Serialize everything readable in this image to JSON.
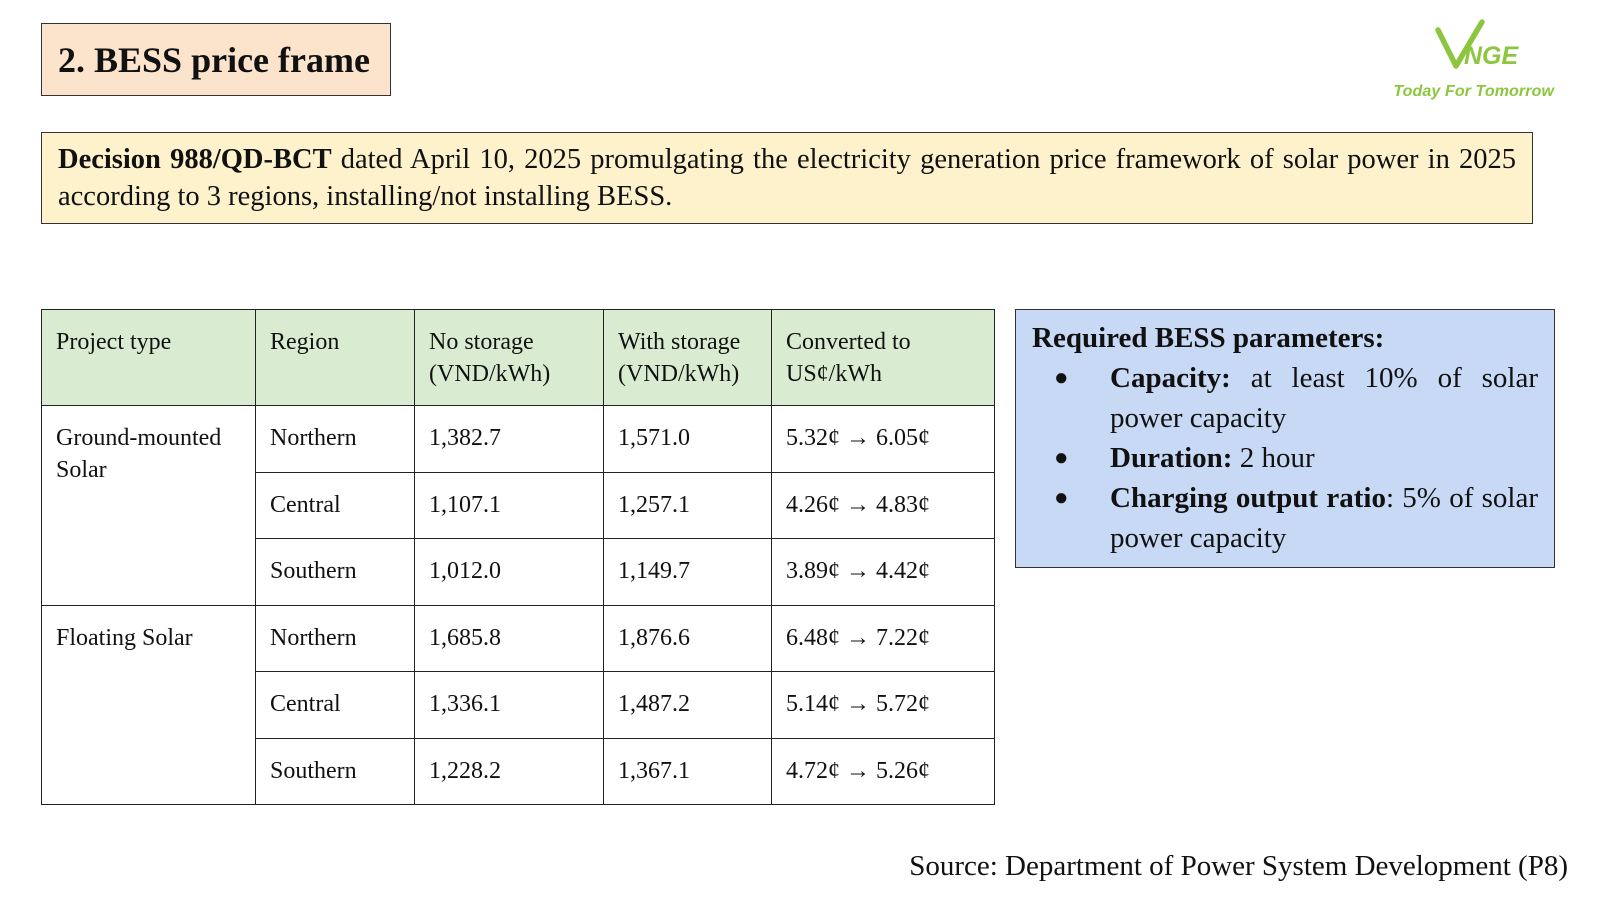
{
  "title": "2. BESS price frame",
  "logo": {
    "brand": "VNGE",
    "tagline": "Today For Tomorrow",
    "color": "#8cc63f"
  },
  "decision": {
    "bold_lead": "Decision  988/QD-BCT",
    "text": " dated April 10, 2025 promulgating the electricity generation price framework of solar power in 2025 according to 3 regions, installing/not installing BESS."
  },
  "table": {
    "headers": {
      "project_type": "Project type",
      "region": "Region",
      "no_storage": "No storage (VND/kWh)",
      "with_storage": "With storage (VND/kWh)",
      "converted": "Converted to US¢/kWh"
    },
    "groups": [
      {
        "project_type": "Ground-mounted Solar",
        "rows": [
          {
            "region": "Northern",
            "no_storage": "1,382.7",
            "with_storage": "1,571.0",
            "converted": "5.32¢ → 6.05¢"
          },
          {
            "region": "Central",
            "no_storage": "1,107.1",
            "with_storage": "1,257.1",
            "converted": "4.26¢ → 4.83¢"
          },
          {
            "region": "Southern",
            "no_storage": "1,012.0",
            "with_storage": "1,149.7",
            "converted": "3.89¢ → 4.42¢"
          }
        ]
      },
      {
        "project_type": "Floating Solar",
        "rows": [
          {
            "region": "Northern",
            "no_storage": "1,685.8",
            "with_storage": "1,876.6",
            "converted": "6.48¢ → 7.22¢"
          },
          {
            "region": "Central",
            "no_storage": "1,336.1",
            "with_storage": "1,487.2",
            "converted": "5.14¢ → 5.72¢"
          },
          {
            "region": "Southern",
            "no_storage": "1,228.2",
            "with_storage": "1,367.1",
            "converted": "4.72¢ → 5.26¢"
          }
        ]
      }
    ]
  },
  "params": {
    "title": "Required BESS parameters:",
    "items": [
      {
        "label": "Capacity:",
        "text": " at least 10% of solar power capacity"
      },
      {
        "label": "Duration:",
        "text": " 2 hour"
      },
      {
        "label": "Charging output ratio",
        "text": ": 5% of solar power capacity"
      }
    ]
  },
  "source": "Source: Department of Power System Development (P8)",
  "colors": {
    "title_bg": "#fce3cc",
    "decision_bg": "#fdf2cc",
    "table_header_bg": "#d9ecd2",
    "params_bg": "#c8d9f5",
    "logo_green": "#8cc63f"
  }
}
